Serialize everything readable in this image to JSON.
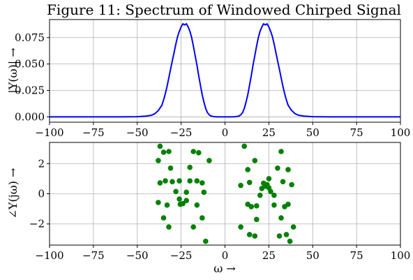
{
  "chart_data": [
    {
      "type": "line",
      "title": "Figure 11: Spectrum of Windowed Chirped Signal",
      "xlabel": "",
      "ylabel": "|Y(ω)| →",
      "xlim": [
        -100,
        100
      ],
      "ylim": [
        -0.005,
        0.092
      ],
      "xticks": [
        -100,
        -75,
        -50,
        -25,
        0,
        25,
        50,
        75,
        100
      ],
      "xtick_labels": [
        "−100",
        "−75",
        "−50",
        "−25",
        "0",
        "25",
        "50",
        "75",
        "100"
      ],
      "yticks": [
        0,
        0.025,
        0.05,
        0.075
      ],
      "ytick_labels": [
        "0.000",
        "0.025",
        "0.050",
        "0.075"
      ],
      "grid": true,
      "color": "#0000ff",
      "series": [
        {
          "x": [
            -100,
            -60,
            -50,
            -45,
            -42,
            -40,
            -38,
            -36,
            -35,
            -34,
            -33,
            -32,
            -31,
            -30,
            -29,
            -28,
            -27,
            -26,
            -25,
            -24,
            -23,
            -22,
            -21,
            -20,
            -19,
            -18,
            -17,
            -16,
            -15,
            -14,
            -13,
            -12,
            -11,
            -10,
            -9,
            -8,
            -6,
            -4,
            0,
            4,
            6,
            8,
            9,
            10,
            11,
            12,
            13,
            14,
            15,
            16,
            17,
            18,
            19,
            20,
            21,
            22,
            23,
            24,
            25,
            26,
            27,
            28,
            29,
            30,
            31,
            32,
            33,
            34,
            35,
            36,
            38,
            40,
            42,
            45,
            50,
            60,
            100
          ],
          "y": [
            0.0,
            0.0,
            0.0002,
            0.0008,
            0.0015,
            0.003,
            0.006,
            0.011,
            0.016,
            0.022,
            0.029,
            0.037,
            0.045,
            0.053,
            0.061,
            0.069,
            0.076,
            0.081,
            0.085,
            0.088,
            0.087,
            0.088,
            0.085,
            0.081,
            0.075,
            0.067,
            0.058,
            0.049,
            0.039,
            0.03,
            0.021,
            0.014,
            0.008,
            0.004,
            0.002,
            0.0008,
            0.0002,
            0.0,
            0.0,
            0.0,
            0.0002,
            0.0008,
            0.002,
            0.004,
            0.008,
            0.014,
            0.021,
            0.03,
            0.039,
            0.049,
            0.058,
            0.067,
            0.075,
            0.081,
            0.085,
            0.088,
            0.087,
            0.088,
            0.085,
            0.081,
            0.076,
            0.069,
            0.061,
            0.053,
            0.045,
            0.037,
            0.029,
            0.022,
            0.016,
            0.011,
            0.006,
            0.003,
            0.0015,
            0.0008,
            0.0002,
            0.0,
            0.0
          ]
        }
      ]
    },
    {
      "type": "scatter",
      "title": "",
      "xlabel": "ω →",
      "ylabel": "∠Y(jω) →",
      "xlim": [
        -100,
        100
      ],
      "ylim": [
        -3.4,
        3.4
      ],
      "xticks": [
        -100,
        -75,
        -50,
        -25,
        0,
        25,
        50,
        75,
        100
      ],
      "xtick_labels": [
        "−100",
        "−75",
        "−50",
        "−25",
        "0",
        "25",
        "50",
        "75",
        "100"
      ],
      "yticks": [
        -2,
        0,
        2
      ],
      "ytick_labels": [
        "−2",
        "0",
        "2"
      ],
      "grid": true,
      "color": "#008000",
      "series": [
        {
          "points": [
            [
              -37,
              3.15
            ],
            [
              -35,
              2.75
            ],
            [
              -32,
              2.8
            ],
            [
              -38,
              2.2
            ],
            [
              -31,
              1.7
            ],
            [
              -37,
              0.72
            ],
            [
              -34,
              0.85
            ],
            [
              -30,
              0.8
            ],
            [
              -33,
              -0.75
            ],
            [
              -38,
              -0.58
            ],
            [
              -35,
              -1.6
            ],
            [
              -32,
              -2.2
            ],
            [
              -18,
              2.8
            ],
            [
              -15,
              2.72
            ],
            [
              -9,
              2.2
            ],
            [
              -20,
              1.75
            ],
            [
              -26,
              0.85
            ],
            [
              -28,
              0.15
            ],
            [
              -26,
              -0.35
            ],
            [
              -24,
              -0.65
            ],
            [
              -25.5,
              -0.7
            ],
            [
              -22,
              -0.45
            ],
            [
              -20,
              0.85
            ],
            [
              -22,
              0.1
            ],
            [
              -16,
              0.85
            ],
            [
              -13,
              0.72
            ],
            [
              -12,
              0.1
            ],
            [
              -16,
              -0.75
            ],
            [
              -13,
              -1.6
            ],
            [
              -18,
              -2.2
            ],
            [
              -11,
              -3.15
            ],
            [
              11,
              3.15
            ],
            [
              13,
              1.6
            ],
            [
              17,
              2.2
            ],
            [
              9,
              0.55
            ],
            [
              14,
              0.75
            ],
            [
              13,
              -0.7
            ],
            [
              15,
              -0.85
            ],
            [
              18,
              -0.8
            ],
            [
              18,
              -1.7
            ],
            [
              9,
              -2.2
            ],
            [
              14,
              -2.7
            ],
            [
              17,
              -2.8
            ],
            [
              21,
              0.35
            ],
            [
              22,
              0.7
            ],
            [
              23,
              0.5
            ],
            [
              24,
              0.6
            ],
            [
              25,
              0.4
            ],
            [
              26,
              0.15
            ],
            [
              20,
              -0.1
            ],
            [
              25,
              1.0
            ],
            [
              28,
              -0.1
            ],
            [
              28,
              -0.75
            ],
            [
              30,
              1.7
            ],
            [
              32,
              2.8
            ],
            [
              33,
              0.8
            ],
            [
              36,
              1.6
            ],
            [
              38,
              0.6
            ],
            [
              34,
              -0.85
            ],
            [
              36,
              -0.7
            ],
            [
              32,
              -1.6
            ],
            [
              35,
              -2.7
            ],
            [
              31,
              -2.8
            ],
            [
              39,
              -2.2
            ],
            [
              37,
              -3.15
            ]
          ]
        }
      ]
    }
  ]
}
